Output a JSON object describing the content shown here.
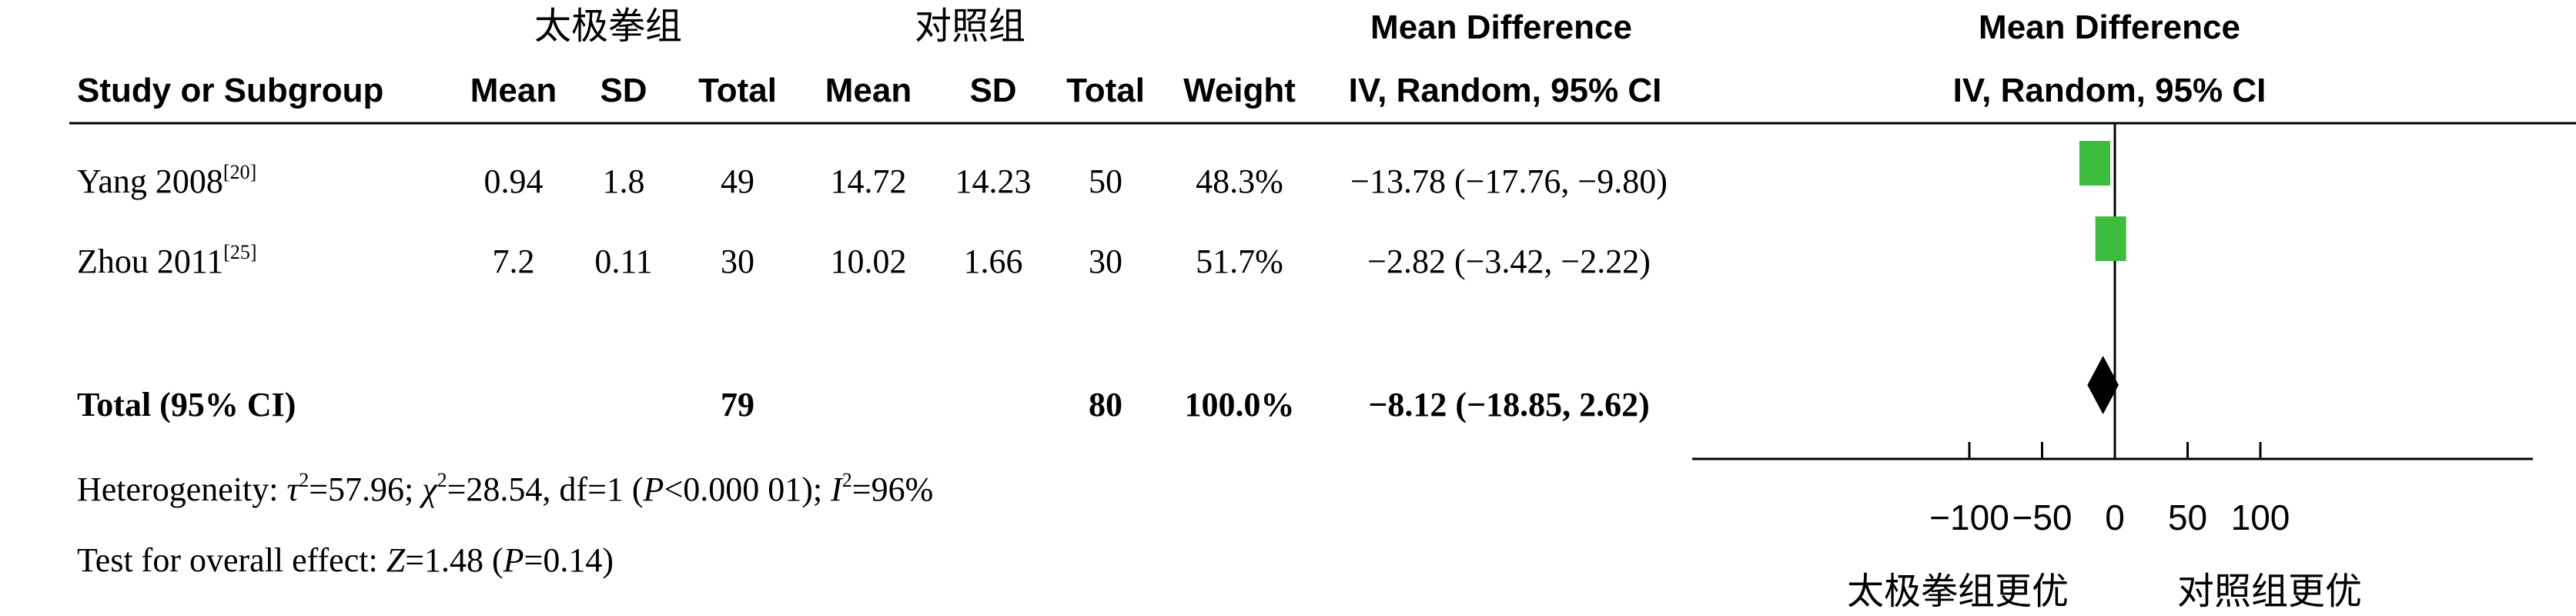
{
  "chart_data": {
    "type": "forest",
    "group_headers": {
      "treatment": "太极拳组",
      "control": "对照组"
    },
    "effect_header": {
      "line1": "Mean Difference",
      "line2": "IV, Random, 95% CI"
    },
    "plot_header": {
      "line1": "Mean Difference",
      "line2": "IV, Random, 95% CI"
    },
    "columns": {
      "study": "Study or Subgroup",
      "mean_t": "Mean",
      "sd_t": "SD",
      "total_t": "Total",
      "mean_c": "Mean",
      "sd_c": "SD",
      "total_c": "Total",
      "weight": "Weight"
    },
    "studies": [
      {
        "name": "Yang 2008",
        "ref": "[20]",
        "mean_t": "0.94",
        "sd_t": "1.8",
        "total_t": "49",
        "mean_c": "14.72",
        "sd_c": "14.23",
        "total_c": "50",
        "weight": "48.3%",
        "ci_text": "−13.78 (−17.76, −9.80)",
        "md": -13.78,
        "lo": -17.76,
        "hi": -9.8,
        "weight_value": 48.3
      },
      {
        "name": "Zhou 2011",
        "ref": "[25]",
        "mean_t": "7.2",
        "sd_t": "0.11",
        "total_t": "30",
        "mean_c": "10.02",
        "sd_c": "1.66",
        "total_c": "30",
        "weight": "51.7%",
        "ci_text": "−2.82 (−3.42, −2.22)",
        "md": -2.82,
        "lo": -3.42,
        "hi": -2.22,
        "weight_value": 51.7
      }
    ],
    "total": {
      "label": "Total (95% CI)",
      "total_t": "79",
      "total_c": "80",
      "weight": "100.0%",
      "ci_text": "−8.12 (−18.85, 2.62)",
      "md": -8.12,
      "lo": -18.85,
      "hi": 2.62
    },
    "heterogeneity": {
      "prefix": "Heterogeneity: ",
      "tau_sym": "τ",
      "tau_val": "=57.96; ",
      "chi_sym": "χ",
      "chi_val": "=28.54, df=1 (",
      "p_sym": "P",
      "p_val": "<0.000 01); ",
      "i_sym": "I",
      "i_val": "=96%"
    },
    "overall_effect": {
      "prefix": "Test for overall effect: ",
      "z_sym": "Z",
      "z_val": "=1.48 (",
      "p_sym": "P",
      "p_val": "=0.14)"
    },
    "axis": {
      "min": -100,
      "max": 100,
      "center": 0,
      "ticks": [
        -100,
        -50,
        0,
        50,
        100
      ],
      "tick_labels": [
        "−100",
        "−50",
        "0",
        "50",
        "100"
      ],
      "left_label": "太极拳组更优",
      "right_label": "对照组更优"
    },
    "colors": {
      "study_marker": "#3dbd3d",
      "diamond": "#000000"
    }
  }
}
